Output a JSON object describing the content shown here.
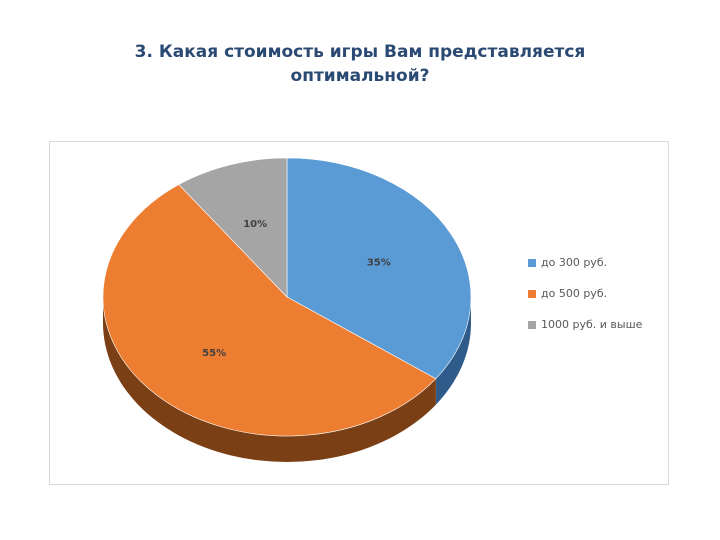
{
  "slide": {
    "title_line1": "3. Какая стоимость игры Вам представляется",
    "title_line2": "оптимальной?"
  },
  "chart_data": {
    "type": "pie",
    "title": "",
    "categories": [
      "до 300 руб.",
      "до 500 руб.",
      "1000 руб. и выше"
    ],
    "values": [
      35,
      55,
      10
    ],
    "value_labels": [
      "35%",
      "55%",
      "10%"
    ],
    "colors": [
      "#5b9bd5",
      "#ed7d31",
      "#a5a5a5"
    ],
    "side_colors": [
      "#2e5b8a",
      "#7a3f14",
      "#6b6b6b"
    ],
    "style": "3d",
    "legend_position": "right"
  }
}
